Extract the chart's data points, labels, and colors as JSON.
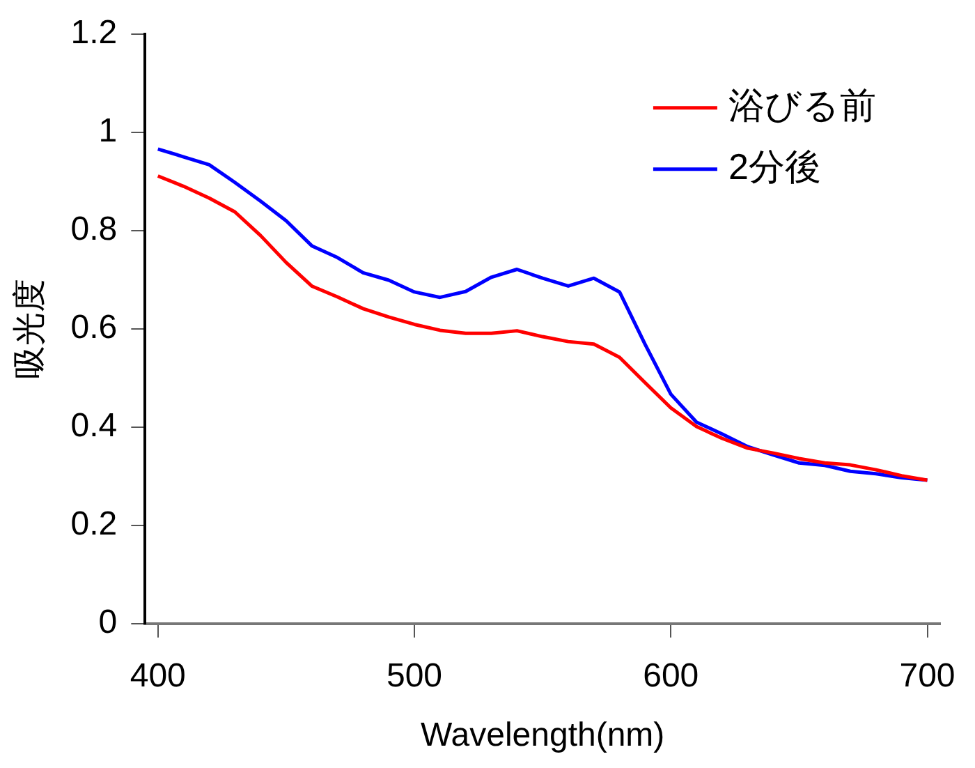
{
  "chart_data": {
    "type": "line",
    "xlabel": "Wavelength(nm)",
    "ylabel": "吸光度",
    "x": [
      400,
      410,
      420,
      430,
      440,
      450,
      460,
      470,
      480,
      490,
      500,
      510,
      520,
      530,
      540,
      550,
      560,
      570,
      580,
      590,
      600,
      610,
      620,
      630,
      640,
      650,
      660,
      670,
      680,
      690,
      700
    ],
    "series": [
      {
        "name": "浴びる前",
        "color": "#ff0000",
        "values": [
          0.911,
          0.89,
          0.866,
          0.838,
          0.79,
          0.735,
          0.687,
          0.665,
          0.641,
          0.624,
          0.609,
          0.597,
          0.591,
          0.591,
          0.596,
          0.584,
          0.574,
          0.569,
          0.542,
          0.49,
          0.439,
          0.401,
          0.377,
          0.357,
          0.347,
          0.336,
          0.327,
          0.323,
          0.313,
          0.301,
          0.292
        ]
      },
      {
        "name": "2分後",
        "color": "#0000ff",
        "values": [
          0.966,
          0.95,
          0.934,
          0.898,
          0.86,
          0.82,
          0.769,
          0.745,
          0.714,
          0.699,
          0.675,
          0.664,
          0.676,
          0.705,
          0.721,
          0.703,
          0.687,
          0.703,
          0.675,
          0.568,
          0.467,
          0.41,
          0.386,
          0.36,
          0.343,
          0.327,
          0.322,
          0.31,
          0.305,
          0.297,
          0.292
        ]
      }
    ],
    "xlim": [
      395,
      705
    ],
    "xticks": [
      400,
      500,
      600,
      700
    ],
    "ylim": [
      0,
      1.2
    ],
    "yticks": [
      0,
      0.2,
      0.4,
      0.6,
      0.8,
      1,
      1.2
    ],
    "grid": false,
    "legend": "top right",
    "marker": "none",
    "line_style": "solid"
  }
}
